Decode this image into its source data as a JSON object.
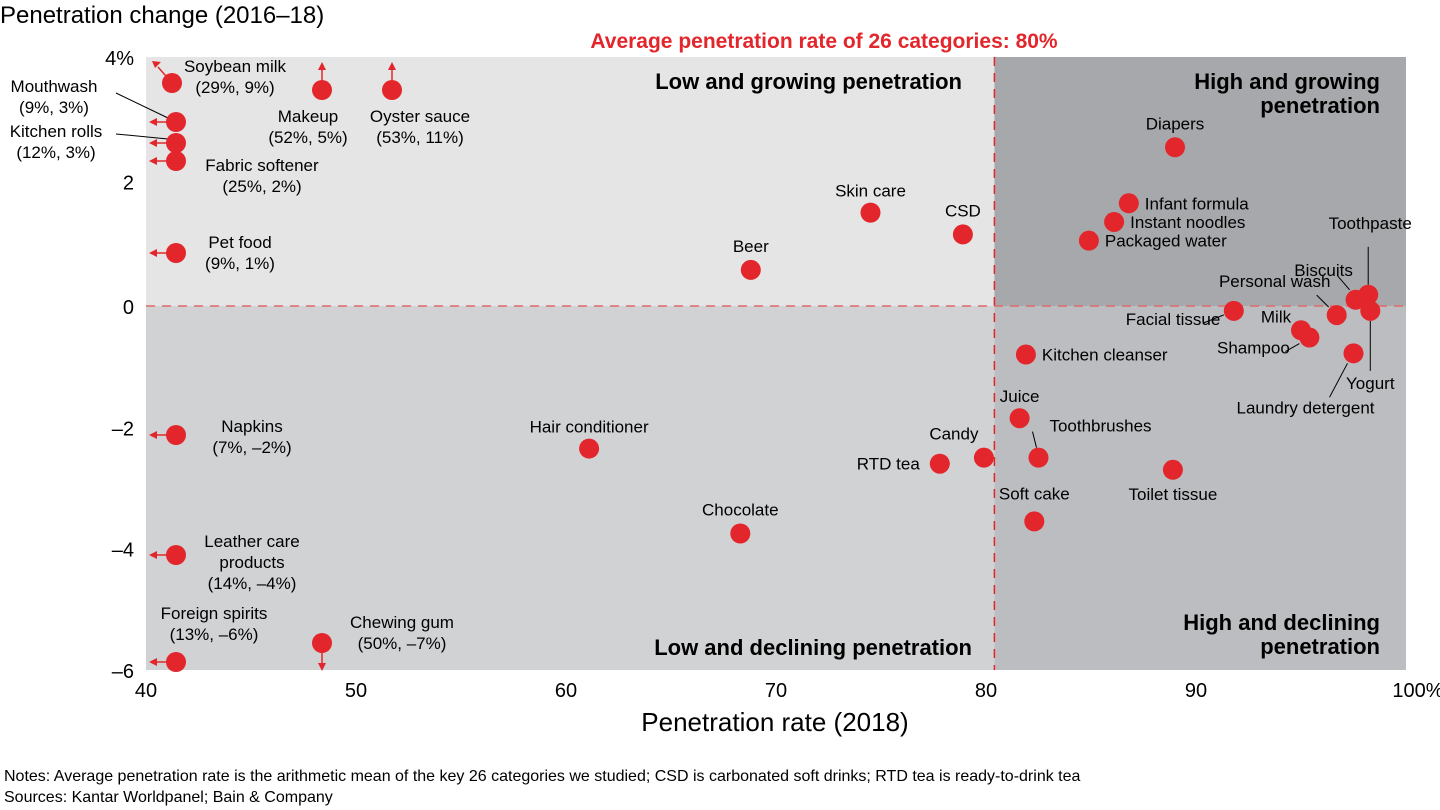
{
  "chart_data": {
    "type": "scatter",
    "title": "",
    "ylabel": "Penetration change (2016–18)",
    "xlabel": "Penetration rate (2018)",
    "xlim": [
      40,
      100
    ],
    "ylim": [
      -6,
      4
    ],
    "x_ticks": [
      {
        "value": 40,
        "label": "40"
      },
      {
        "value": 50,
        "label": "50"
      },
      {
        "value": 60,
        "label": "60"
      },
      {
        "value": 70,
        "label": "70"
      },
      {
        "value": 80,
        "label": "80"
      },
      {
        "value": 90,
        "label": "90"
      },
      {
        "value": 100,
        "label": "100%"
      }
    ],
    "y_ticks": [
      {
        "value": 4,
        "label": "4%"
      },
      {
        "value": 2,
        "label": "2"
      },
      {
        "value": 0,
        "label": "0"
      },
      {
        "value": -2,
        "label": "–2"
      },
      {
        "value": -4,
        "label": "–4"
      },
      {
        "value": -6,
        "label": "–6"
      }
    ],
    "grid": false,
    "average_line": {
      "x": 80.4,
      "label": "Average penetration rate of 26 categories: 80%",
      "color": "#e3262b"
    },
    "quadrants": [
      {
        "name": "low-growing",
        "label": [
          "Low and growing penetration"
        ],
        "color": "#e5e5e6"
      },
      {
        "name": "high-growing",
        "label": [
          "High and growing",
          "penetration"
        ],
        "color": "#a7a8ab"
      },
      {
        "name": "low-declining",
        "label": [
          "Low and declining penetration"
        ],
        "color": "#d1d2d4"
      },
      {
        "name": "high-declining",
        "label": [
          "High and declining",
          "penetration"
        ],
        "color": "#bcbdc0"
      }
    ],
    "point_color": "#e3262b",
    "points": [
      {
        "name": "Diapers",
        "x": 89.0,
        "y": 2.55
      },
      {
        "name": "Infant formula",
        "x": 86.8,
        "y": 1.65
      },
      {
        "name": "Instant noodles",
        "x": 86.1,
        "y": 1.35
      },
      {
        "name": "Packaged water",
        "x": 84.9,
        "y": 1.05
      },
      {
        "name": "Skin care",
        "x": 74.5,
        "y": 1.5
      },
      {
        "name": "CSD",
        "x": 78.9,
        "y": 1.15
      },
      {
        "name": "Beer",
        "x": 68.8,
        "y": 0.58
      },
      {
        "name": "Toothpaste",
        "x": 98.2,
        "y": 0.18
      },
      {
        "name": "Biscuits",
        "x": 97.6,
        "y": 0.1
      },
      {
        "name": "Yogurt",
        "x": 98.3,
        "y": -0.08
      },
      {
        "name": "Personal wash",
        "x": 96.7,
        "y": -0.15
      },
      {
        "name": "Facial tissue",
        "x": 91.8,
        "y": -0.08
      },
      {
        "name": "Milk",
        "x": 95.0,
        "y": -0.4
      },
      {
        "name": "Shampoo",
        "x": 95.4,
        "y": -0.52
      },
      {
        "name": "Laundry detergent",
        "x": 97.5,
        "y": -0.78
      },
      {
        "name": "Kitchen cleanser",
        "x": 81.9,
        "y": -0.8
      },
      {
        "name": "Juice",
        "x": 81.6,
        "y": -1.85
      },
      {
        "name": "Toothbrushes",
        "x": 82.5,
        "y": -2.5
      },
      {
        "name": "Candy",
        "x": 79.9,
        "y": -2.5
      },
      {
        "name": "RTD tea",
        "x": 77.8,
        "y": -2.6
      },
      {
        "name": "Toilet tissue",
        "x": 88.9,
        "y": -2.7
      },
      {
        "name": "Soft cake",
        "x": 82.3,
        "y": -3.55
      },
      {
        "name": "Hair conditioner",
        "x": 61.1,
        "y": -2.35
      },
      {
        "name": "Chocolate",
        "x": 68.3,
        "y": -3.75
      }
    ],
    "offscale_points": [
      {
        "name": "Soybean milk",
        "actual": "(29%, 9%)",
        "direction": "up-left"
      },
      {
        "name": "Makeup",
        "actual": "(52%, 5%)",
        "direction": "up"
      },
      {
        "name": "Oyster sauce",
        "actual": "(53%, 11%)",
        "direction": "up"
      },
      {
        "name": "Mouthwash",
        "actual": "(9%, 3%)",
        "direction": "left"
      },
      {
        "name": "Kitchen rolls",
        "actual": "(12%, 3%)",
        "direction": "left"
      },
      {
        "name": "Fabric softener",
        "actual": "(25%, 2%)",
        "direction": "left"
      },
      {
        "name": "Pet food",
        "actual": "(9%, 1%)",
        "direction": "left"
      },
      {
        "name": "Napkins",
        "actual": "(7%, –2%)",
        "direction": "left"
      },
      {
        "name": "Leather care products",
        "actual": "(14%, –4%)",
        "direction": "left"
      },
      {
        "name": "Foreign spirits",
        "actual": "(13%, –6%)",
        "direction": "left"
      },
      {
        "name": "Chewing gum",
        "actual": "(50%, –7%)",
        "direction": "down"
      }
    ]
  },
  "notes": {
    "line1": "Notes: Average penetration rate is the arithmetic mean of the key 26 categories we studied; CSD is carbonated soft drinks; RTD tea is ready-to-drink tea",
    "line2": "Sources: Kantar Worldpanel; Bain & Company"
  }
}
